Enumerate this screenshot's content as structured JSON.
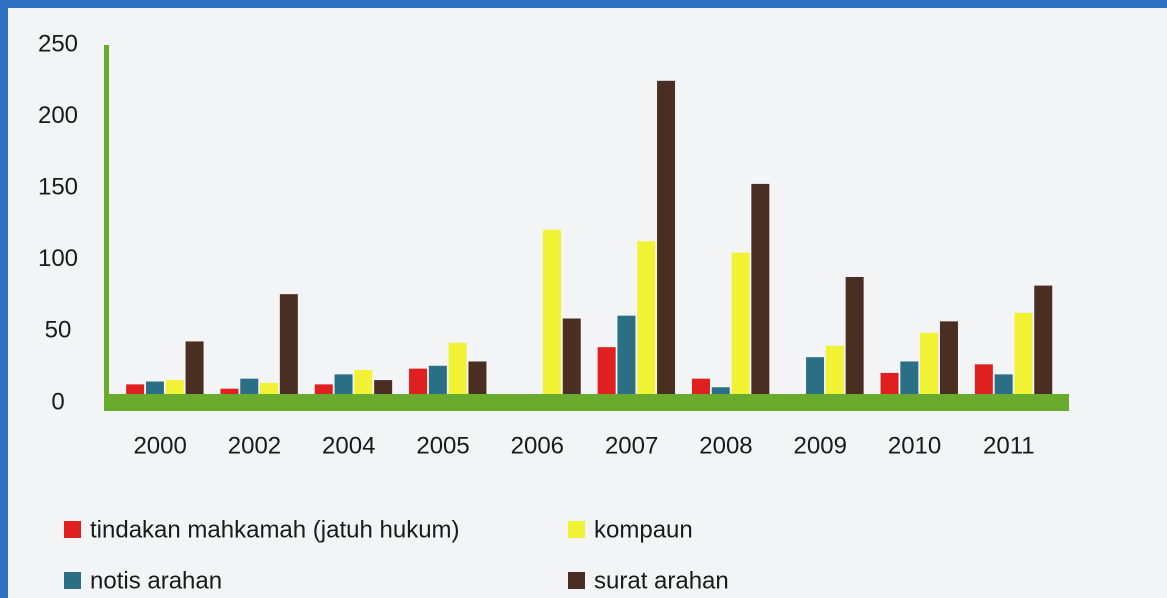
{
  "chart_data": {
    "type": "bar",
    "categories": [
      "2000",
      "2002",
      "2004",
      "2005",
      "2006",
      "2007",
      "2008",
      "2009",
      "2010",
      "2011"
    ],
    "series": [
      {
        "name": "tindakan mahkamah (jatuh hukum)",
        "color": "#e0201f",
        "values": [
          13,
          10,
          13,
          24,
          0,
          39,
          17,
          0,
          21,
          27
        ]
      },
      {
        "name": "notis arahan",
        "color": "#2b6f86",
        "values": [
          15,
          17,
          20,
          26,
          0,
          61,
          11,
          32,
          29,
          20
        ]
      },
      {
        "name": "kompaun",
        "color": "#f2f235",
        "values": [
          16,
          14,
          23,
          42,
          121,
          113,
          105,
          40,
          49,
          63
        ]
      },
      {
        "name": "surat arahan",
        "color": "#4a2e21",
        "values": [
          43,
          76,
          16,
          29,
          59,
          225,
          153,
          88,
          57,
          82
        ]
      }
    ],
    "ylim": [
      0,
      250
    ],
    "yticks": [
      0,
      50,
      100,
      150,
      200,
      250
    ],
    "grid": false,
    "axis_color": "#6aab2e"
  }
}
